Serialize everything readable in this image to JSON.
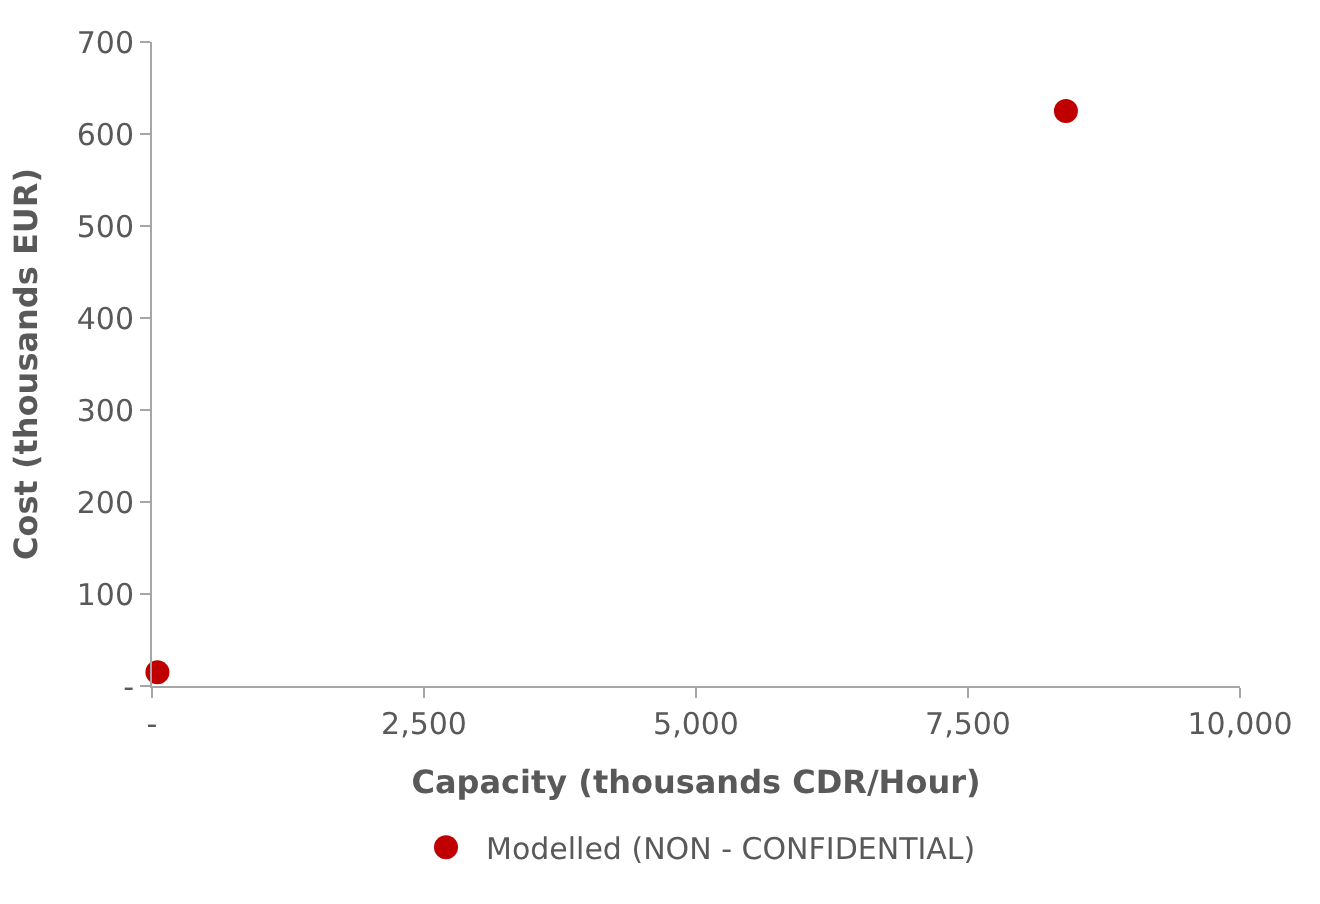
{
  "chart_data": {
    "type": "scatter",
    "xlabel": "Capacity (thousands CDR/Hour)",
    "ylabel": "Cost (thousands EUR)",
    "x": [
      50,
      8400
    ],
    "series": [
      {
        "name": "Modelled (NON - CONFIDENTIAL)",
        "color": "#c00000",
        "values": [
          15,
          625
        ]
      }
    ],
    "xlim": [
      0,
      10000
    ],
    "xticks": [
      {
        "value": 0,
        "label": "-"
      },
      {
        "value": 2500,
        "label": "2,500"
      },
      {
        "value": 5000,
        "label": "5,000"
      },
      {
        "value": 7500,
        "label": "7,500"
      },
      {
        "value": 10000,
        "label": "10,000"
      }
    ],
    "ylim": [
      0,
      700
    ],
    "yticks": [
      {
        "value": 0,
        "label": "-"
      },
      100,
      200,
      300,
      400,
      500,
      600,
      700
    ],
    "legend": "bottom",
    "marker": "circle"
  }
}
